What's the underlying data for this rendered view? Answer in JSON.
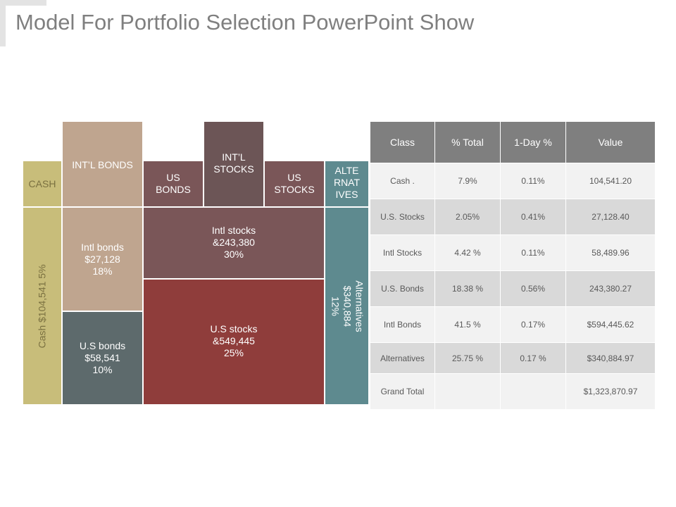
{
  "title": "Model For Portfolio Selection PowerPoint Show",
  "colors": {
    "cash": "#c8bd7a",
    "intl_bonds": "#bfa58f",
    "us_bonds": "#5d6a6c",
    "intl_stocks": "#7a5658",
    "us_stocks": "#8f3d3b",
    "alternatives": "#5e8a8f",
    "header": "#7f7f7f"
  },
  "treemap": {
    "cash_header": "CASH",
    "intl_bonds_header": "INT’L BONDS",
    "us_bonds_header": "US BONDS",
    "intl_stocks_header": "INT’L STOCKS",
    "us_stocks_header": "US STOCKS",
    "alternatives_header": "ALTE\nRNAT\nIVES",
    "cash_value": "Cash  $104,541  5%",
    "intl_bonds_value": "Intl  bonds\n$27,128\n18%",
    "us_bonds_value": "U.S bonds\n$58,541\n10%",
    "intl_stocks_value": "Intl  stocks\n&243,380\n30%",
    "us_stocks_value": "U.S stocks\n&549,445\n25%",
    "alternatives_value": "Alternatives  $340,884\n12%"
  },
  "table": {
    "headers": [
      "Class",
      "% Total",
      "1-Day %",
      "Value"
    ],
    "rows": [
      [
        "Cash .",
        "7.9%",
        "0.11%",
        "104,541.20"
      ],
      [
        "U.S. Stocks",
        "2.05%",
        "0.41%",
        "27,128.40"
      ],
      [
        "Intl Stocks",
        "4.42 %",
        "0.11%",
        "58,489.96"
      ],
      [
        "U.S. Bonds",
        "18.38 %",
        "0.56%",
        "243,380.27"
      ],
      [
        "Intl Bonds",
        "41.5 %",
        "0.17%",
        "$594,445.62"
      ],
      [
        "Alternatives",
        "25.75 %",
        "0.17 %",
        "$340,884.97"
      ],
      [
        "Grand Total",
        "",
        "",
        "$1,323,870.97"
      ]
    ]
  }
}
